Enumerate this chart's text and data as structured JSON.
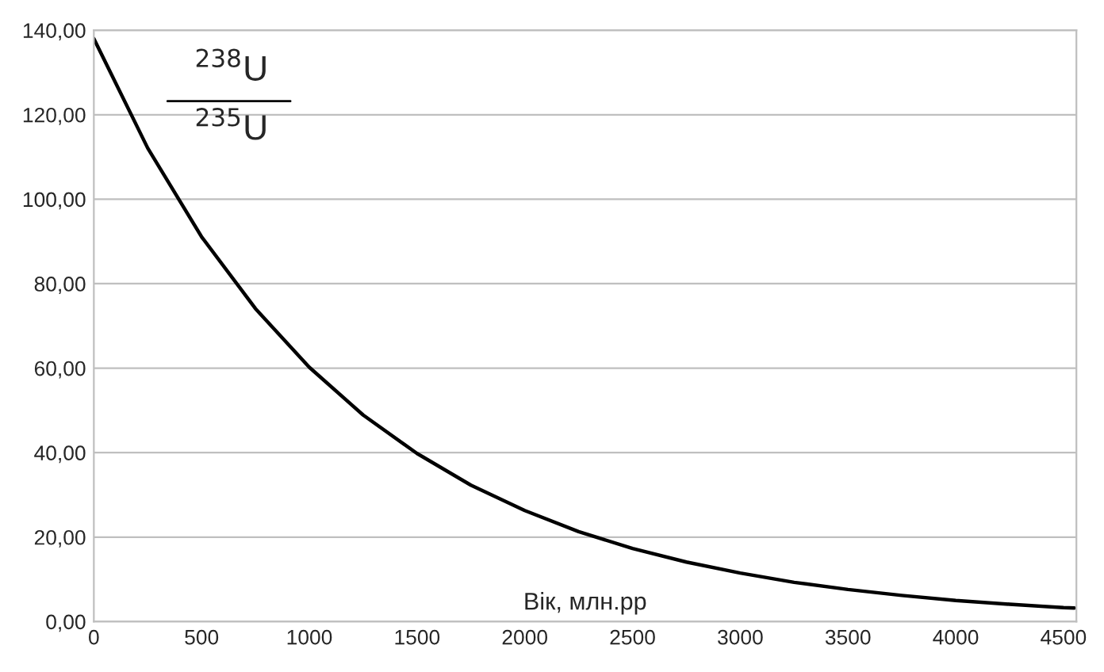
{
  "chart_data": {
    "type": "line",
    "xlabel": "Вік, млн.рр",
    "annotations": [
      "$^{238}$U",
      "$^{235}$U"
    ],
    "x": [
      0,
      250,
      500,
      750,
      1000,
      1250,
      1500,
      1750,
      2000,
      2250,
      2500,
      2750,
      3000,
      3250,
      3500,
      3750,
      4000,
      4250,
      4500,
      4550
    ],
    "series": [
      {
        "color": "#000000",
        "values": [
          138.0,
          112.1,
          91.1,
          74.1,
          60.2,
          48.9,
          39.8,
          32.3,
          26.3,
          21.3,
          17.3,
          14.1,
          11.5,
          9.3,
          7.6,
          6.2,
          5.0,
          4.1,
          3.3,
          3.2
        ]
      }
    ],
    "xlim": [
      0,
      4560
    ],
    "xticks": [
      0,
      500,
      1000,
      1500,
      2000,
      2500,
      3000,
      3500,
      4000,
      4500
    ],
    "ylim": [
      0,
      140
    ],
    "yticks": [
      {
        "value": 0,
        "label": "0,00"
      },
      {
        "value": 20,
        "label": "20,00"
      },
      {
        "value": 40,
        "label": "40,00"
      },
      {
        "value": 60,
        "label": "60,00"
      },
      {
        "value": 80,
        "label": "80,00"
      },
      {
        "value": 100,
        "label": "100,00"
      },
      {
        "value": 120,
        "label": "120,00"
      },
      {
        "value": 140,
        "label": "140,00"
      }
    ],
    "grid": "y",
    "marker": "none",
    "line_style": "solid"
  }
}
